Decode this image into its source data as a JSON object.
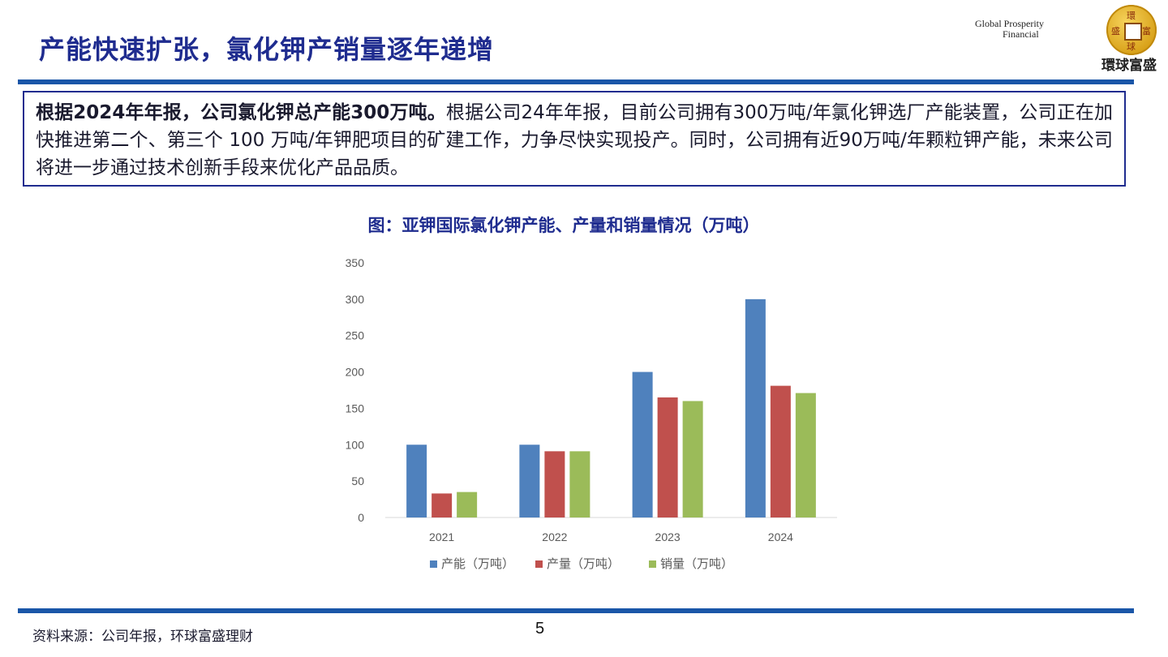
{
  "slide": {
    "title": "产能快速扩张，氯化钾产销量逐年递增",
    "page_number": "5",
    "source": "资料来源：公司年报，环球富盛理财"
  },
  "logo": {
    "line1": "Global Prosperity",
    "line2": "Financial",
    "chinese": "環球富盛",
    "seal_chars": [
      "環",
      "富",
      "盛",
      "球"
    ]
  },
  "callout": {
    "bold_text": "根据2024年年报，公司氯化钾总产能300万吨。",
    "body_text": "根据公司24年年报，目前公司拥有300万吨/年氯化钾选厂产能装置，公司正在加快推进第二个、第三个 100 万吨/年钾肥项目的矿建工作，力争尽快实现投产。同时，公司拥有近90万吨/年颗粒钾产能，未来公司将进一步通过技术创新手段来优化产品品质。"
  },
  "chart_data": {
    "type": "bar",
    "title": "图：亚钾国际氯化钾产能、产量和销量情况（万吨）",
    "categories": [
      "2021",
      "2022",
      "2023",
      "2024"
    ],
    "series": [
      {
        "name": "产能（万吨）",
        "values": [
          100,
          100,
          200,
          300
        ],
        "color": "#4f81bd"
      },
      {
        "name": "产量（万吨）",
        "values": [
          33,
          91,
          165,
          181
        ],
        "color": "#c0504d"
      },
      {
        "name": "销量（万吨）",
        "values": [
          35,
          91,
          160,
          171
        ],
        "color": "#9bbb59"
      }
    ],
    "ylim": [
      0,
      350
    ],
    "yticks": [
      0,
      50,
      100,
      150,
      200,
      250,
      300,
      350
    ],
    "grid": false,
    "legend": "bottom"
  }
}
